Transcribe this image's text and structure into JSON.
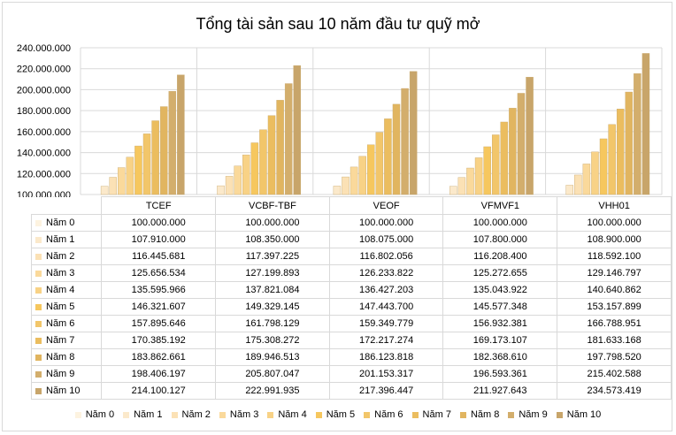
{
  "chart_data": {
    "type": "bar",
    "title": "Tổng tài sản sau 10 năm đầu tư quỹ mở",
    "categories": [
      "TCEF",
      "VCBF-TBF",
      "VEOF",
      "VFMVF1",
      "VHH01"
    ],
    "ylim": [
      100000000,
      240000000
    ],
    "yticks": [
      "100.000.000",
      "120.000.000",
      "140.000.000",
      "160.000.000",
      "180.000.000",
      "200.000.000",
      "220.000.000",
      "240.000.000"
    ],
    "grid": true,
    "legend_position": "bottom",
    "data_table": true,
    "series": [
      {
        "name": "Năm 0",
        "values": [
          100000000,
          100000000,
          100000000,
          100000000,
          100000000
        ],
        "labels": [
          "100.000.000",
          "100.000.000",
          "100.000.000",
          "100.000.000",
          "100.000.000"
        ],
        "color": "#fdf3e0"
      },
      {
        "name": "Năm 1",
        "values": [
          107910000,
          108350000,
          108075000,
          107800000,
          108900000
        ],
        "labels": [
          "107.910.000",
          "108.350.000",
          "108.075.000",
          "107.800.000",
          "108.900.000"
        ],
        "color": "#fbe9cb"
      },
      {
        "name": "Năm 2",
        "values": [
          116445681,
          117397225,
          116802056,
          116208400,
          118592100
        ],
        "labels": [
          "116.445.681",
          "117.397.225",
          "116.802.056",
          "116.208.400",
          "118.592.100"
        ],
        "color": "#fbe1b5"
      },
      {
        "name": "Năm 3",
        "values": [
          125656534,
          127199893,
          126233822,
          125272655,
          129146797
        ],
        "labels": [
          "125.656.534",
          "127.199.893",
          "126.233.822",
          "125.272.655",
          "129.146.797"
        ],
        "color": "#fad99b"
      },
      {
        "name": "Năm 4",
        "values": [
          135595966,
          137821084,
          136427203,
          135043922,
          140640862
        ],
        "labels": [
          "135.595.966",
          "137.821.084",
          "136.427.203",
          "135.043.922",
          "140.640.862"
        ],
        "color": "#f8d286"
      },
      {
        "name": "Năm 5",
        "values": [
          146321607,
          149329145,
          147443700,
          145577348,
          153157899
        ],
        "labels": [
          "146.321.607",
          "149.329.145",
          "147.443.700",
          "145.577.348",
          "153.157.899"
        ],
        "color": "#f6c75e"
      },
      {
        "name": "Năm 6",
        "values": [
          157895646,
          161798129,
          159349779,
          156932381,
          166788951
        ],
        "labels": [
          "157.895.646",
          "161.798.129",
          "159.349.779",
          "156.932.381",
          "166.788.951"
        ],
        "color": "#f2c66a"
      },
      {
        "name": "Năm 7",
        "values": [
          170385192,
          175308272,
          172217274,
          169173107,
          181633168
        ],
        "labels": [
          "170.385.192",
          "175.308.272",
          "172.217.274",
          "169.173.107",
          "181.633.168"
        ],
        "color": "#ebbd5f"
      },
      {
        "name": "Năm 8",
        "values": [
          183862661,
          189946513,
          186123818,
          182368610,
          197798520
        ],
        "labels": [
          "183.862.661",
          "189.946.513",
          "186.123.818",
          "182.368.610",
          "197.798.520"
        ],
        "color": "#e1b560"
      },
      {
        "name": "Năm 9",
        "values": [
          198406197,
          205807047,
          201153317,
          196593361,
          215402588
        ],
        "labels": [
          "198.406.197",
          "205.807.047",
          "201.153.317",
          "196.593.361",
          "215.402.588"
        ],
        "color": "#d3ae6c"
      },
      {
        "name": "Năm 10",
        "values": [
          214100127,
          222991935,
          217396447,
          211927643,
          234573419
        ],
        "labels": [
          "214.100.127",
          "222.991.935",
          "217.396.447",
          "211.927.643",
          "234.573.419"
        ],
        "color": "#c8a56a"
      }
    ]
  }
}
